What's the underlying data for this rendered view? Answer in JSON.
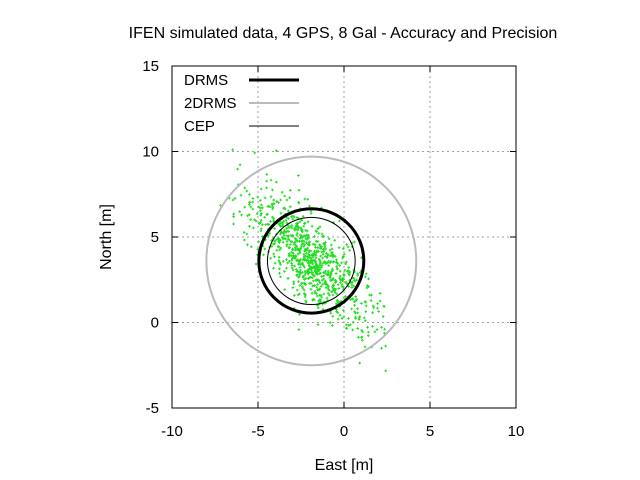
{
  "chart_data": {
    "type": "scatter",
    "title": "IFEN simulated data, 4 GPS, 8 Gal - Accuracy and Precision",
    "xlabel": "East [m]",
    "ylabel": "North [m]",
    "xlim": [
      -10,
      10
    ],
    "ylim": [
      -5,
      15
    ],
    "xticks": [
      "-10",
      "-5",
      "0",
      "5",
      "10"
    ],
    "yticks": [
      "-5",
      "0",
      "5",
      "10",
      "15"
    ],
    "grid": true,
    "legend_position": "top-left",
    "legend": [
      {
        "label": "DRMS",
        "color": "#000000",
        "style": "thick"
      },
      {
        "label": "2DRMS",
        "color": "#bbbbbb",
        "style": "medium"
      },
      {
        "label": "CEP",
        "color": "#000000",
        "style": "thin"
      }
    ],
    "circles": [
      {
        "name": "DRMS",
        "center": [
          -1.9,
          3.6
        ],
        "radius": 3.05,
        "color": "#000000"
      },
      {
        "name": "2DRMS",
        "center": [
          -1.9,
          3.6
        ],
        "radius": 6.1,
        "color": "#bbbbbb"
      },
      {
        "name": "CEP",
        "center": [
          -1.9,
          3.6
        ],
        "radius": 2.55,
        "color": "#000000"
      }
    ],
    "scatter_series": {
      "color": "#22dd22",
      "count": 900,
      "mean": [
        -1.9,
        3.6
      ],
      "major_sd": 2.6,
      "minor_sd": 0.9,
      "major_axis_angle_deg": -47,
      "range_x": [
        -7.5,
        2.5
      ],
      "range_y": [
        -3.4,
        10.5
      ]
    }
  }
}
